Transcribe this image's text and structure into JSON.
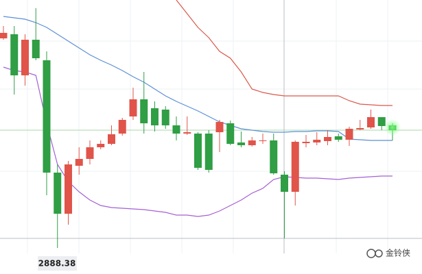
{
  "chart_data": {
    "type": "candlestick",
    "ylim": [
      2850,
      3250
    ],
    "up_color": "#e0544a",
    "down_color": "#2f9e44",
    "open": [
      3194,
      3200,
      3140,
      3192,
      3162,
      2998,
      2938,
      3008,
      3018,
      3035,
      3040,
      3055,
      3080,
      3105,
      3092,
      3090,
      3067,
      3055,
      3055,
      3055,
      3057,
      3070,
      3042,
      3038,
      3044,
      3045,
      2995,
      2970,
      3041,
      3042,
      3044,
      3051,
      3046,
      3061,
      3064,
      3079,
      3067
    ],
    "high": [
      3212,
      3212,
      3200,
      3238,
      3175,
      3010,
      3015,
      3035,
      3045,
      3045,
      3067,
      3078,
      3122,
      3145,
      3102,
      3095,
      3080,
      3080,
      3057,
      3060,
      3075,
      3074,
      3058,
      3050,
      3055,
      3055,
      3000,
      3045,
      3053,
      3057,
      3060,
      3055,
      3065,
      3075,
      3090,
      3079,
      3070
    ],
    "low": [
      3192,
      3112,
      3125,
      3162,
      2965,
      2888,
      2922,
      2995,
      3010,
      3032,
      3038,
      3052,
      3075,
      3055,
      3058,
      3062,
      3045,
      3053,
      3002,
      2998,
      3028,
      3038,
      3035,
      3036,
      3040,
      2995,
      2902,
      2950,
      3035,
      3038,
      3038,
      3043,
      3037,
      3060,
      3062,
      3060,
      3045
    ],
    "close": [
      3202,
      3140,
      3192,
      3165,
      2998,
      2938,
      3010,
      3018,
      3035,
      3040,
      3054,
      3075,
      3105,
      3070,
      3067,
      3067,
      3055,
      3057,
      3005,
      3002,
      3072,
      3040,
      3038,
      3045,
      3045,
      2997,
      2970,
      3043,
      3043,
      3046,
      3050,
      3046,
      3062,
      3063,
      3079,
      3066,
      3060
    ],
    "lines": [
      {
        "color": "#5b8fd6",
        "values": [
          3226,
          3224,
          3222,
          3217,
          3210,
          3200,
          3190,
          3180,
          3170,
          3162,
          3155,
          3147,
          3138,
          3130,
          3120,
          3110,
          3102,
          3095,
          3088,
          3080,
          3072,
          3067,
          3062,
          3060,
          3058,
          3057,
          3057,
          3058,
          3058,
          3059,
          3059,
          3058,
          3047,
          3046,
          3045,
          3045,
          3045
        ]
      },
      {
        "color": "#d9584a",
        "values": [
          null,
          null,
          null,
          null,
          null,
          null,
          null,
          null,
          null,
          null,
          null,
          null,
          null,
          null,
          null,
          null,
          3250,
          3230,
          3210,
          3195,
          3175,
          3165,
          3145,
          3120,
          3115,
          3112,
          3110,
          3110,
          3110,
          3110,
          3110,
          3110,
          3103,
          3098,
          3097,
          3096,
          3096
        ]
      },
      {
        "color": "#a45fd6",
        "values": [
          3152,
          3147,
          3145,
          3140,
          3070,
          3010,
          2985,
          2970,
          2958,
          2950,
          2947,
          2946,
          2945,
          2944,
          2942,
          2940,
          2936,
          2936,
          2934,
          2936,
          2942,
          2950,
          2958,
          2968,
          2975,
          2988,
          2992,
          2991,
          2990,
          2990,
          2989,
          2988,
          2990,
          2991,
          2992,
          2993,
          2993
        ]
      }
    ],
    "price_label": "2888.38",
    "watermark": "金铃侠"
  }
}
